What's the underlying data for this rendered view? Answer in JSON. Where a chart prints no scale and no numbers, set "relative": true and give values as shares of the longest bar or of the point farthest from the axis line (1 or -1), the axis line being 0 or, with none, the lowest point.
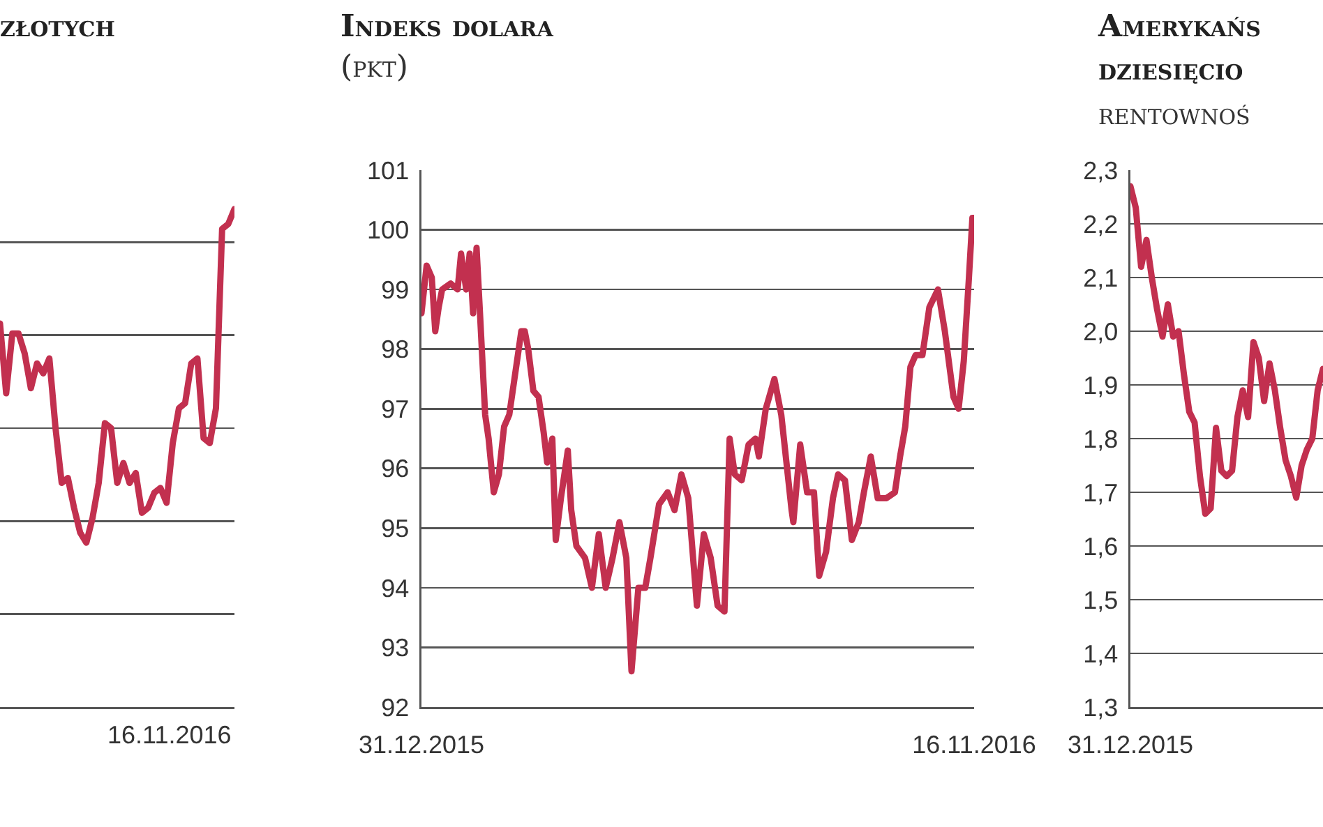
{
  "chart_data": [
    {
      "type": "line",
      "title": "złotych",
      "relative": true,
      "grid": "y",
      "categories": [
        null,
        null,
        null,
        null,
        null,
        null,
        null,
        null,
        null,
        null,
        null,
        null,
        null,
        null,
        null,
        null,
        null,
        null,
        null,
        null,
        null,
        null,
        null,
        null,
        null,
        null,
        null,
        null,
        null,
        null,
        null,
        null,
        null,
        null,
        null,
        null,
        null,
        null,
        null
      ],
      "annotations": [
        "16.11.2016"
      ],
      "series": [
        {
          "color": "#c2304f",
          "values": [
            0.77,
            0.63,
            0.75,
            0.75,
            0.71,
            0.64,
            0.69,
            0.67,
            0.7,
            0.56,
            0.45,
            0.46,
            0.4,
            0.35,
            0.33,
            0.38,
            0.45,
            0.57,
            0.56,
            0.45,
            0.49,
            0.45,
            0.47,
            0.39,
            0.4,
            0.43,
            0.44,
            0.41,
            0.53,
            0.6,
            0.61,
            0.69,
            0.7,
            0.54,
            0.53,
            0.6,
            0.96,
            0.97,
            1
          ]
        }
      ]
    },
    {
      "type": "line",
      "title": "Indeks dolara",
      "subtitle": "(pkt)",
      "grid": "y",
      "ylim": [
        92,
        101
      ],
      "yticks": [
        {
          "value": 92,
          "label": "92"
        },
        {
          "value": 93,
          "label": "93"
        },
        {
          "value": 94,
          "label": "94"
        },
        {
          "value": 95,
          "label": "95"
        },
        {
          "value": 96,
          "label": "96"
        },
        {
          "value": 97,
          "label": "97"
        },
        {
          "value": 98,
          "label": "98"
        },
        {
          "value": 99,
          "label": "99"
        },
        {
          "value": 100,
          "label": "100"
        },
        {
          "value": 101,
          "label": "101"
        }
      ],
      "xlim": [
        "2015-12-31",
        "2016-11-16"
      ],
      "xticks": [
        {
          "value": "2015-12-31",
          "label": "31.12.2015"
        },
        {
          "value": "2016-11-16",
          "label": "16.11.2016"
        }
      ],
      "series": [
        {
          "color": "#c2304f",
          "x": [
            "2015-12-31",
            "2016-01-03",
            "2016-01-06",
            "2016-01-08",
            "2016-01-10",
            "2016-01-12",
            "2016-01-17",
            "2016-01-21",
            "2016-01-23",
            "2016-01-26",
            "2016-01-28",
            "2016-01-30",
            "2016-02-01",
            "2016-02-03",
            "2016-02-06",
            "2016-02-08",
            "2016-02-11",
            "2016-02-14",
            "2016-02-17",
            "2016-02-20",
            "2016-02-23",
            "2016-02-27",
            "2016-02-29",
            "2016-03-02",
            "2016-03-05",
            "2016-03-08",
            "2016-03-11",
            "2016-03-13",
            "2016-03-16",
            "2016-03-18",
            "2016-03-21",
            "2016-03-25",
            "2016-03-27",
            "2016-03-30",
            "2016-04-04",
            "2016-04-08",
            "2016-04-12",
            "2016-04-16",
            "2016-04-20",
            "2016-04-24",
            "2016-04-28",
            "2016-05-01",
            "2016-05-05",
            "2016-05-09",
            "2016-05-12",
            "2016-05-17",
            "2016-05-22",
            "2016-05-26",
            "2016-05-30",
            "2016-06-03",
            "2016-06-08",
            "2016-06-12",
            "2016-06-16",
            "2016-06-20",
            "2016-06-24",
            "2016-06-27",
            "2016-06-30",
            "2016-07-04",
            "2016-07-08",
            "2016-07-12",
            "2016-07-14",
            "2016-07-18",
            "2016-07-23",
            "2016-07-27",
            "2016-08-02",
            "2016-08-03",
            "2016-08-07",
            "2016-08-11",
            "2016-08-15",
            "2016-08-18",
            "2016-08-22",
            "2016-08-26",
            "2016-08-29",
            "2016-09-02",
            "2016-09-06",
            "2016-09-10",
            "2016-09-13",
            "2016-09-17",
            "2016-09-21",
            "2016-09-26",
            "2016-10-01",
            "2016-10-04",
            "2016-10-07",
            "2016-10-10",
            "2016-10-13",
            "2016-10-17",
            "2016-10-21",
            "2016-10-26",
            "2016-10-30",
            "2016-11-04",
            "2016-11-07",
            "2016-11-10",
            "2016-11-13",
            "2016-11-15",
            "2016-11-16"
          ],
          "values": [
            98.6,
            99.4,
            99.2,
            98.3,
            98.7,
            99,
            99.1,
            99,
            99.6,
            99,
            99.6,
            98.6,
            99.7,
            98.6,
            96.9,
            96.5,
            95.6,
            95.9,
            96.7,
            96.9,
            97.5,
            98.3,
            98.3,
            98,
            97.3,
            97.2,
            96.6,
            96.1,
            96.5,
            94.8,
            95.5,
            96.3,
            95.3,
            94.7,
            94.5,
            94,
            94.9,
            94,
            94.5,
            95.1,
            94.5,
            92.6,
            94,
            94,
            94.5,
            95.4,
            95.6,
            95.3,
            95.9,
            95.5,
            93.7,
            94.9,
            94.5,
            93.7,
            93.6,
            96.5,
            95.9,
            95.8,
            96.4,
            96.5,
            96.2,
            97,
            97.5,
            96.9,
            95.3,
            95.1,
            96.4,
            95.6,
            95.6,
            94.2,
            94.6,
            95.5,
            95.9,
            95.8,
            94.8,
            95.1,
            95.6,
            96.2,
            95.5,
            95.5,
            95.6,
            96.2,
            96.7,
            97.7,
            97.9,
            97.9,
            98.7,
            99,
            98.3,
            97.2,
            97,
            97.8,
            99.2,
            100.2,
            100.2
          ]
        }
      ]
    },
    {
      "type": "line",
      "title": "Amerykańs\ndziesięcio",
      "subtitle": "rentownoś",
      "grid": "y",
      "ylim": [
        1.3,
        2.3
      ],
      "yticks": [
        {
          "value": 1.3,
          "label": "1,3"
        },
        {
          "value": 1.4,
          "label": "1,4"
        },
        {
          "value": 1.5,
          "label": "1,5"
        },
        {
          "value": 1.6,
          "label": "1,6"
        },
        {
          "value": 1.7,
          "label": "1,7"
        },
        {
          "value": 1.8,
          "label": "1,8"
        },
        {
          "value": 1.9,
          "label": "1,9"
        },
        {
          "value": 2.0,
          "label": "2,0"
        },
        {
          "value": 2.1,
          "label": "2,1"
        },
        {
          "value": 2.2,
          "label": "2,2"
        },
        {
          "value": 2.3,
          "label": "2,3"
        }
      ],
      "categories": [
        "31.12.2015",
        null,
        null,
        null,
        null,
        null,
        null,
        null,
        null,
        null,
        null,
        null,
        null,
        null,
        null,
        null,
        null,
        null,
        null,
        null,
        null,
        null,
        null,
        null,
        null,
        null,
        null,
        null,
        null,
        null,
        null,
        null,
        null,
        null,
        null,
        null,
        null
      ],
      "series": [
        {
          "color": "#c2304f",
          "values": [
            2.27,
            2.23,
            2.12,
            2.17,
            2.1,
            2.04,
            1.99,
            2.05,
            1.99,
            2,
            1.92,
            1.85,
            1.83,
            1.73,
            1.66,
            1.67,
            1.82,
            1.74,
            1.73,
            1.74,
            1.84,
            1.89,
            1.84,
            1.98,
            1.95,
            1.87,
            1.94,
            1.89,
            1.82,
            1.76,
            1.73,
            1.69,
            1.75,
            1.78,
            1.8,
            1.89,
            1.93
          ]
        }
      ]
    }
  ]
}
